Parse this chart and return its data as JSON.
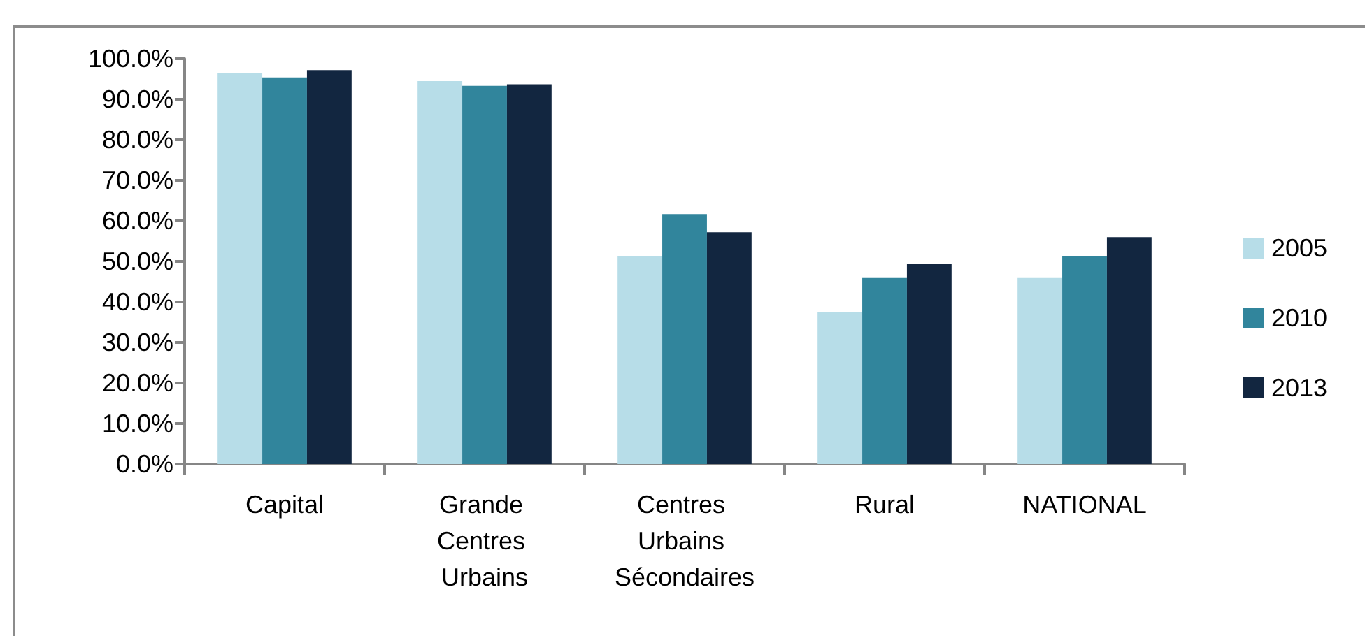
{
  "chart_data": {
    "type": "bar",
    "categories": [
      "Capital",
      "Grande Centres Urbains",
      "Centres Urbains Sécondaires",
      "Rural",
      "NATIONAL"
    ],
    "series": [
      {
        "name": "2005",
        "color": "#b7dde8",
        "values": [
          96.4,
          94.5,
          51.4,
          37.6,
          45.9
        ]
      },
      {
        "name": "2010",
        "color": "#31859c",
        "values": [
          95.4,
          93.3,
          61.7,
          45.9,
          51.4
        ]
      },
      {
        "name": "2013",
        "color": "#122640",
        "values": [
          97.2,
          93.7,
          57.2,
          49.3,
          56.0
        ]
      }
    ],
    "ylim": [
      0,
      100
    ],
    "yticks": [
      {
        "value": 0,
        "label": "0.0%"
      },
      {
        "value": 10,
        "label": "10.0%"
      },
      {
        "value": 20,
        "label": "20.0%"
      },
      {
        "value": 30,
        "label": "30.0%"
      },
      {
        "value": 40,
        "label": "40.0%"
      },
      {
        "value": 50,
        "label": "50.0%"
      },
      {
        "value": 60,
        "label": "60.0%"
      },
      {
        "value": 70,
        "label": "70.0%"
      },
      {
        "value": 80,
        "label": "80.0%"
      },
      {
        "value": 90,
        "label": "90.0%"
      },
      {
        "value": 100,
        "label": "100.0%"
      }
    ],
    "grid": false,
    "legend": "right"
  }
}
